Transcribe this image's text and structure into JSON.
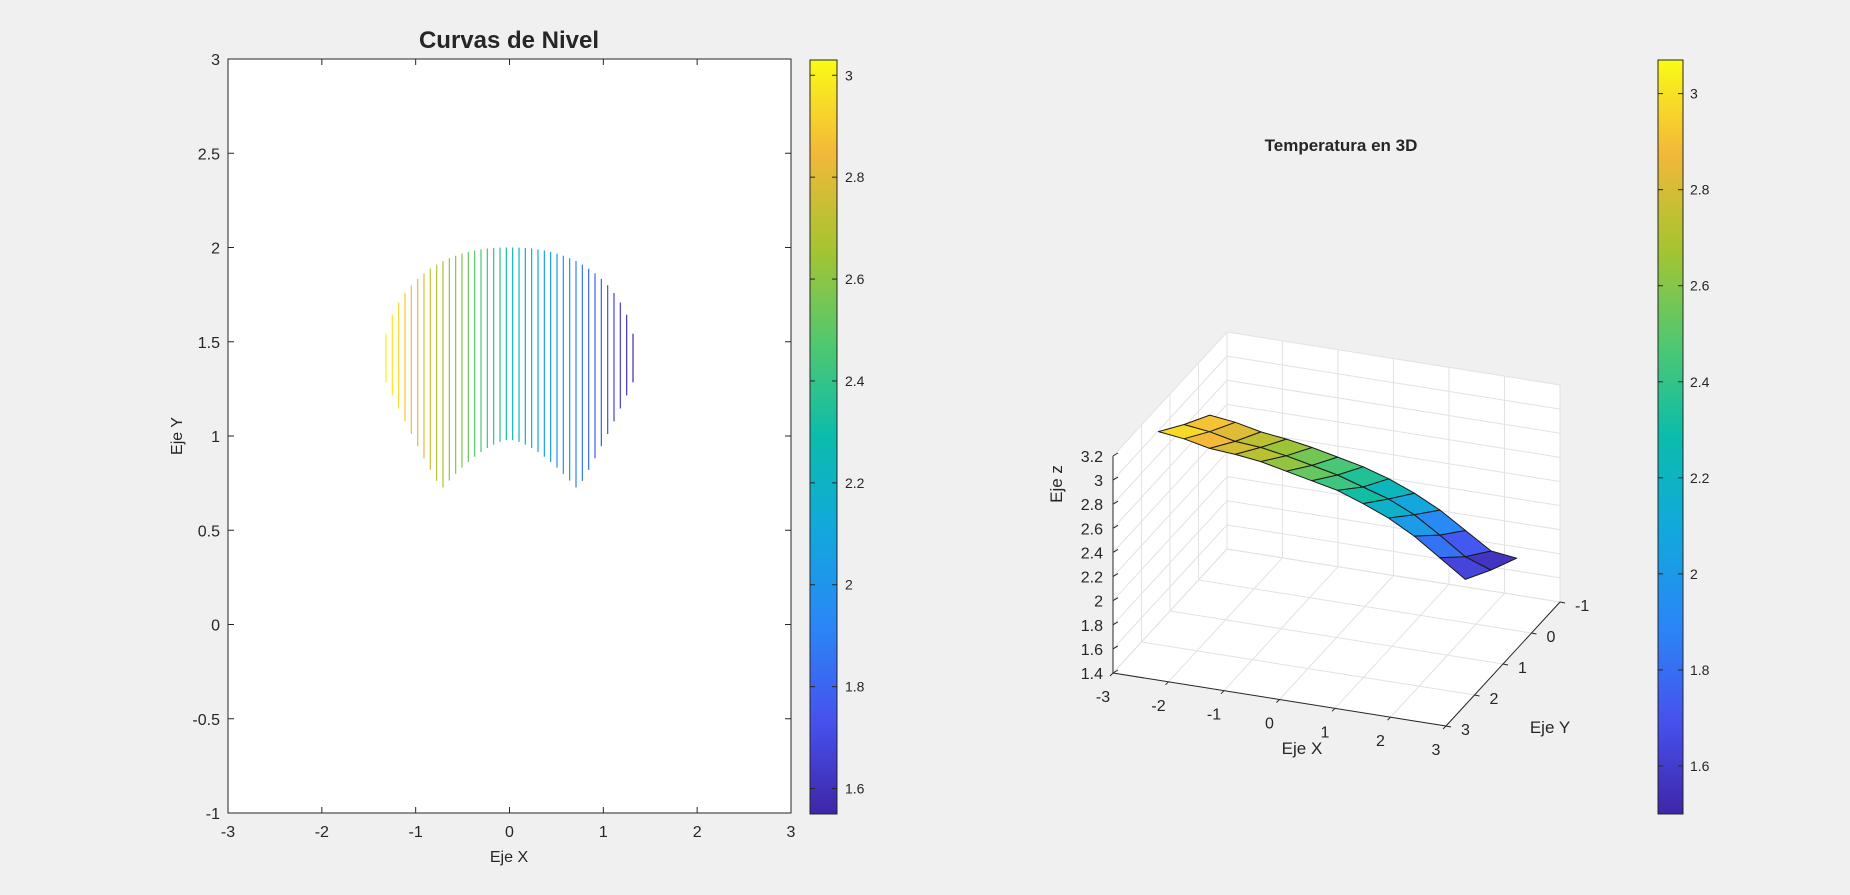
{
  "chart_data": [
    {
      "type": "contour",
      "title": "Curvas de Nivel",
      "xlabel": "Eje X",
      "ylabel": "Eje Y",
      "xlim": [
        -3,
        3
      ],
      "ylim": [
        -1,
        3
      ],
      "xticks": [
        -3,
        -2,
        -1,
        0,
        1,
        2,
        3
      ],
      "yticks": [
        -1,
        -0.5,
        0,
        0.5,
        1,
        1.5,
        2,
        2.5,
        3
      ],
      "xtick_labels": [
        "-3",
        "-2",
        "-1",
        "0",
        "1",
        "2",
        "3"
      ],
      "ytick_labels": [
        "-1",
        "-0.5",
        "0",
        "0.5",
        "1",
        "1.5",
        "2",
        "2.5",
        "3"
      ],
      "box": true,
      "grid": false,
      "colormap": "parula",
      "colorbar": {
        "location": "right",
        "limits": [
          1.55,
          3.03
        ],
        "ticks": [
          1.6,
          1.8,
          2,
          2.2,
          2.4,
          2.6,
          2.8,
          3
        ],
        "tick_labels": [
          "1.6",
          "1.8",
          "2",
          "2.2",
          "2.4",
          "2.6",
          "2.8",
          "3"
        ]
      },
      "level_range": [
        1.55,
        3.03
      ],
      "region": {
        "x_range": [
          -1.35,
          1.35
        ],
        "y_top": 2.0,
        "y_bottom_min": 0.72,
        "y_bottom_center": 0.98
      },
      "line_count": 40
    },
    {
      "type": "surface",
      "title": "Temperatura en 3D",
      "xlabel": "Eje X",
      "ylabel": "Eje Y",
      "zlabel": "Eje z",
      "xlim": [
        -3,
        3
      ],
      "ylim": [
        -1,
        3
      ],
      "zlim": [
        1.4,
        3.2
      ],
      "xticks": [
        -3,
        -2,
        -1,
        0,
        1,
        2,
        3
      ],
      "yticks": [
        -1,
        0,
        1,
        2,
        3
      ],
      "zticks": [
        1.4,
        1.6,
        1.8,
        2,
        2.2,
        2.4,
        2.6,
        2.8,
        3,
        3.2
      ],
      "xtick_labels": [
        "-3",
        "-2",
        "-1",
        "0",
        "1",
        "2",
        "3"
      ],
      "ytick_labels": [
        "-1",
        "0",
        "1",
        "2",
        "3"
      ],
      "ztick_labels": [
        "1.4",
        "1.6",
        "1.8",
        "2",
        "2.2",
        "2.4",
        "2.6",
        "2.8",
        "3",
        "3.2"
      ],
      "grid": true,
      "colormap": "parula",
      "colorbar": {
        "location": "right",
        "limits": [
          1.5,
          3.07
        ],
        "ticks": [
          1.6,
          1.8,
          2,
          2.2,
          2.4,
          2.6,
          2.8,
          3
        ],
        "tick_labels": [
          "1.6",
          "1.8",
          "2",
          "2.2",
          "2.4",
          "2.6",
          "2.8",
          "3"
        ]
      },
      "surface_rows": [
        [
          3.05,
          2.98,
          2.93
        ],
        [
          2.97,
          2.9,
          2.85
        ],
        [
          2.87,
          2.8,
          2.75
        ],
        [
          2.8,
          2.73,
          2.67
        ],
        [
          2.72,
          2.64,
          2.58
        ],
        [
          2.62,
          2.54,
          2.48
        ],
        [
          2.52,
          2.44,
          2.38
        ],
        [
          2.42,
          2.32,
          2.26
        ],
        [
          2.29,
          2.2,
          2.12
        ],
        [
          2.15,
          2.05,
          1.96
        ],
        [
          1.98,
          1.86,
          1.77
        ],
        [
          1.78,
          1.66,
          1.58
        ],
        [
          1.58,
          1.53,
          1.5
        ]
      ]
    }
  ]
}
